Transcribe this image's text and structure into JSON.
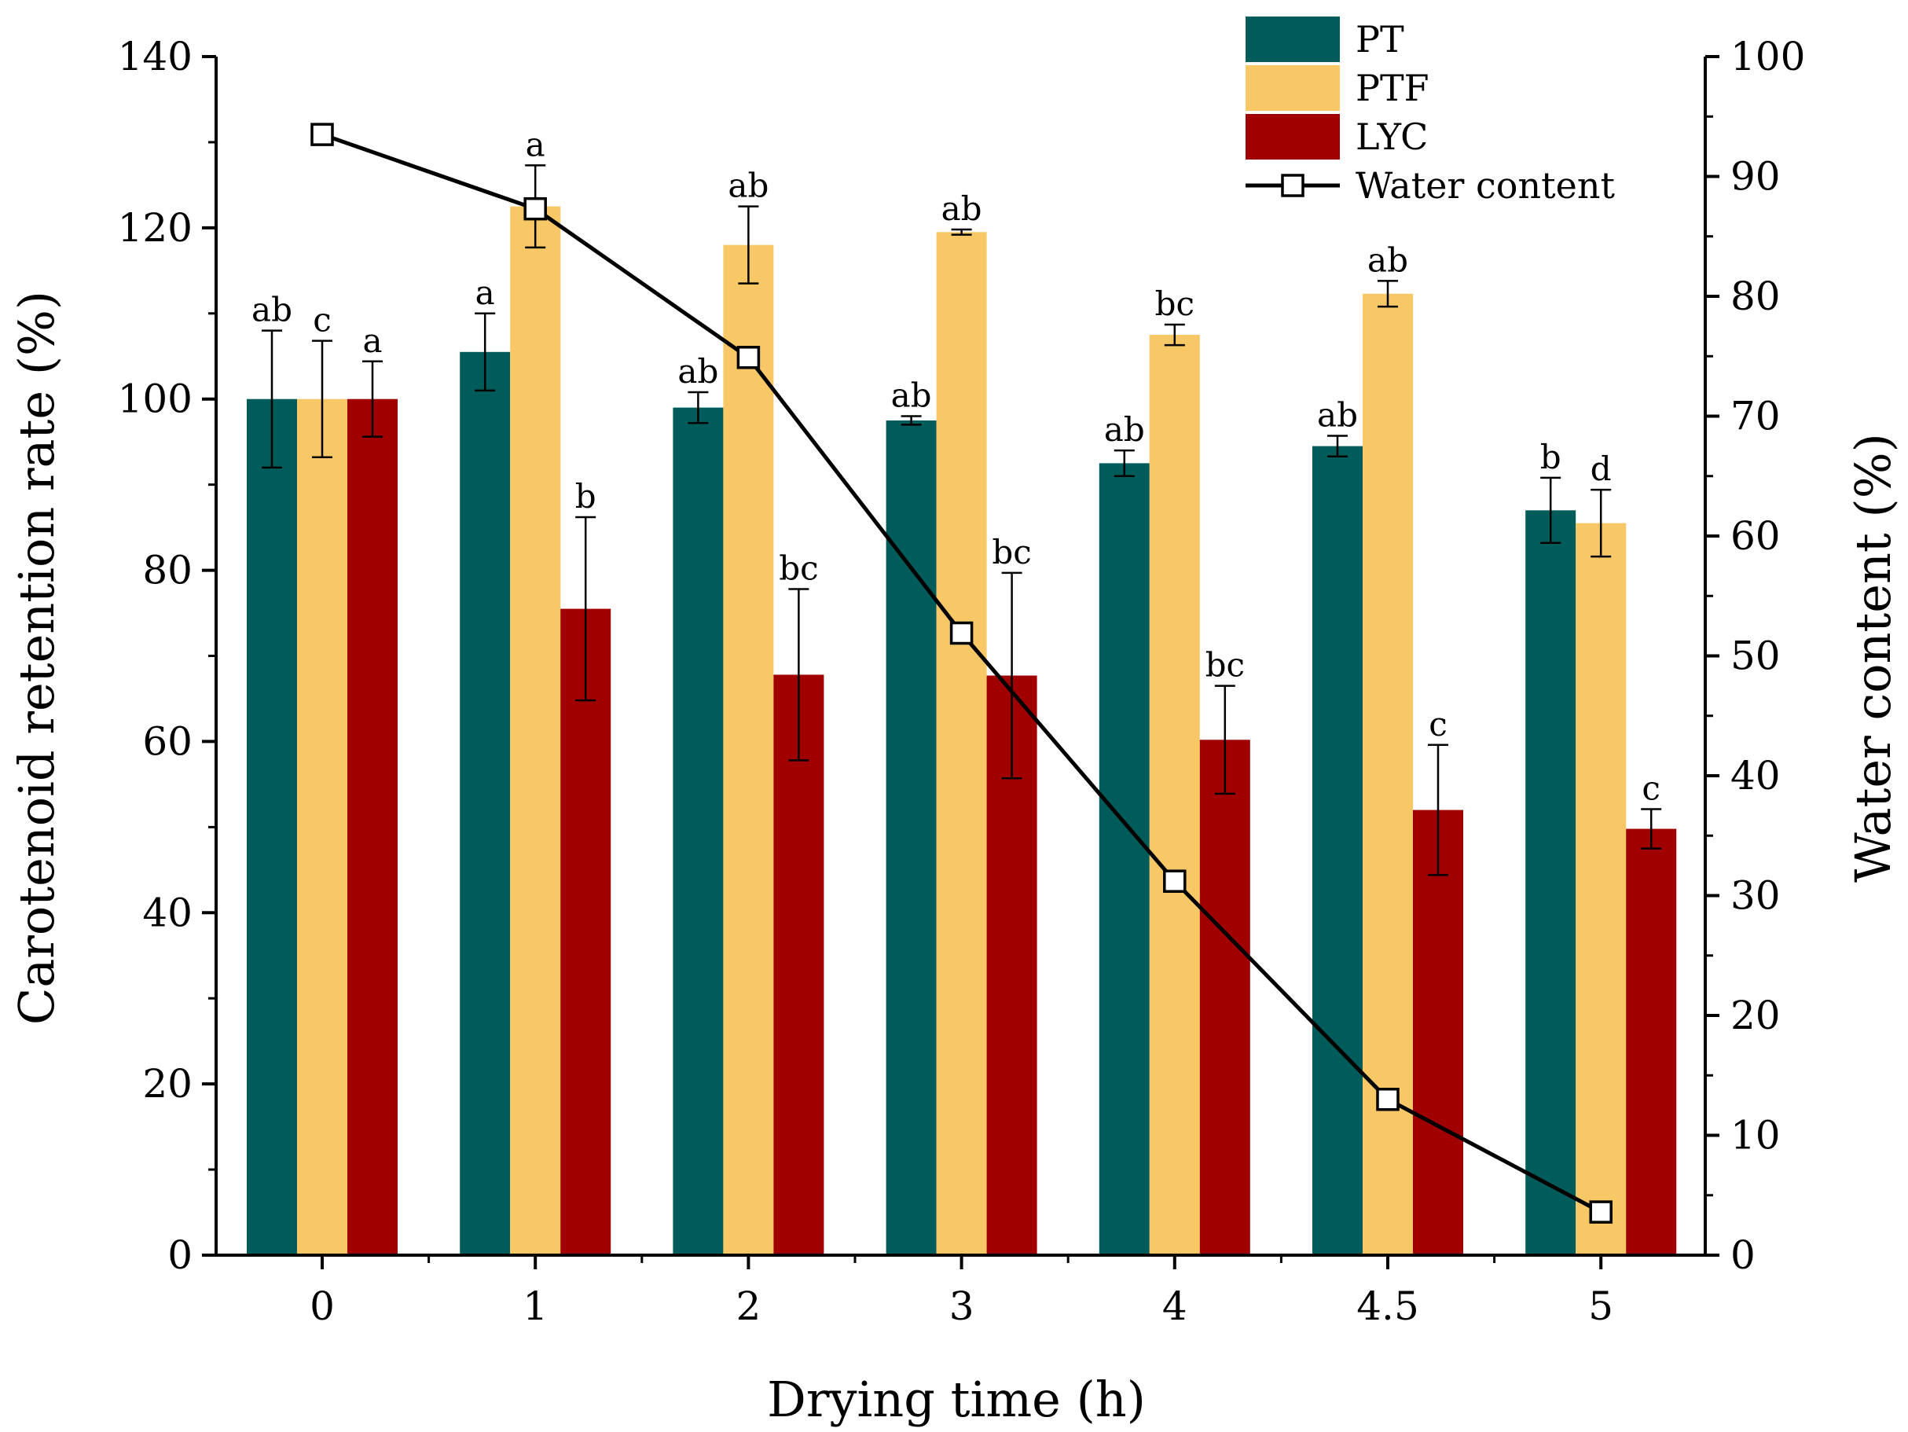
{
  "chart_data": {
    "type": "bar",
    "title": "",
    "xlabel": "Drying time (h)",
    "ylabel": "Carotenoid retention rate (%)",
    "y2label": "Water content (%)",
    "categories": [
      "0",
      "1",
      "2",
      "3",
      "4",
      "4.5",
      "5"
    ],
    "ylim": [
      0,
      140
    ],
    "y2lim": [
      0,
      100
    ],
    "yticks": [
      "0",
      "20",
      "40",
      "60",
      "80",
      "100",
      "120",
      "140"
    ],
    "y2ticks": [
      "0",
      "10",
      "20",
      "30",
      "40",
      "50",
      "60",
      "70",
      "80",
      "90",
      "100"
    ],
    "series": [
      {
        "name": "PT",
        "color": "#005c5a",
        "values": [
          100.0,
          105.5,
          99.0,
          97.5,
          92.5,
          94.5,
          87.0
        ],
        "errors": [
          8.0,
          4.5,
          1.8,
          0.5,
          1.5,
          1.2,
          3.8
        ],
        "labels": [
          "ab",
          "a",
          "ab",
          "ab",
          "ab",
          "ab",
          "b"
        ]
      },
      {
        "name": "PTF",
        "color": "#f8c866",
        "values": [
          100.0,
          122.5,
          118.0,
          119.5,
          107.5,
          112.3,
          85.5
        ],
        "errors": [
          6.8,
          4.8,
          4.5,
          0.3,
          1.2,
          1.5,
          3.9
        ],
        "labels": [
          "c",
          "a",
          "ab",
          "ab",
          "bc",
          "ab",
          "d"
        ]
      },
      {
        "name": "LYC",
        "color": "#a00000",
        "values": [
          100.0,
          75.5,
          67.8,
          67.7,
          60.2,
          52.0,
          49.8
        ],
        "errors": [
          4.4,
          10.7,
          10.0,
          12.0,
          6.3,
          7.6,
          2.3
        ],
        "labels": [
          "a",
          "b",
          "bc",
          "bc",
          "bc",
          "c",
          "c"
        ]
      }
    ],
    "line_series": {
      "name": "Water content",
      "axis": "right",
      "color": "#000000",
      "marker": "open-square",
      "values": [
        93.5,
        87.3,
        74.9,
        51.9,
        31.2,
        13.0,
        3.6
      ]
    },
    "legend_position": "top-right"
  }
}
